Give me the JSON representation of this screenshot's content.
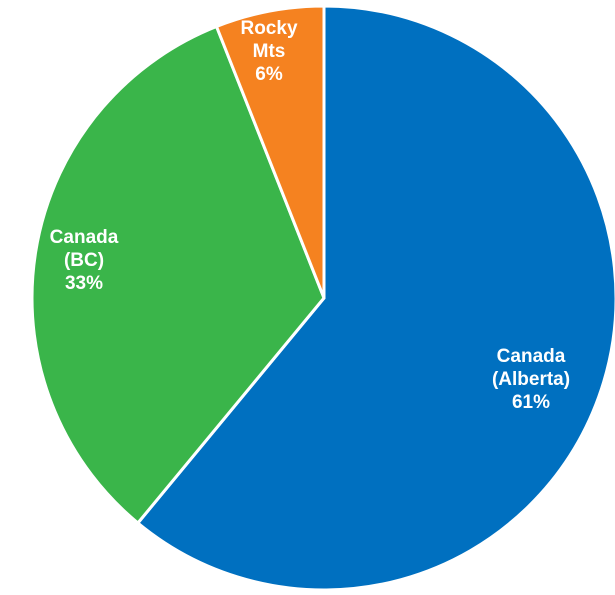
{
  "chart_data": {
    "type": "pie",
    "title": "",
    "start": "12 o'clock",
    "direction": "clockwise",
    "slices": [
      {
        "label_lines": [
          "Canada",
          "(Alberta)",
          "61%"
        ],
        "value": 61,
        "color": "#0070c0"
      },
      {
        "label_lines": [
          "Canada",
          "(BC)",
          "33%"
        ],
        "value": 33,
        "color": "#3ab54a"
      },
      {
        "label_lines": [
          "Rocky",
          "Mts",
          "6%"
        ],
        "value": 6,
        "color": "#f58220"
      }
    ],
    "separator_color": "#ffffff"
  }
}
